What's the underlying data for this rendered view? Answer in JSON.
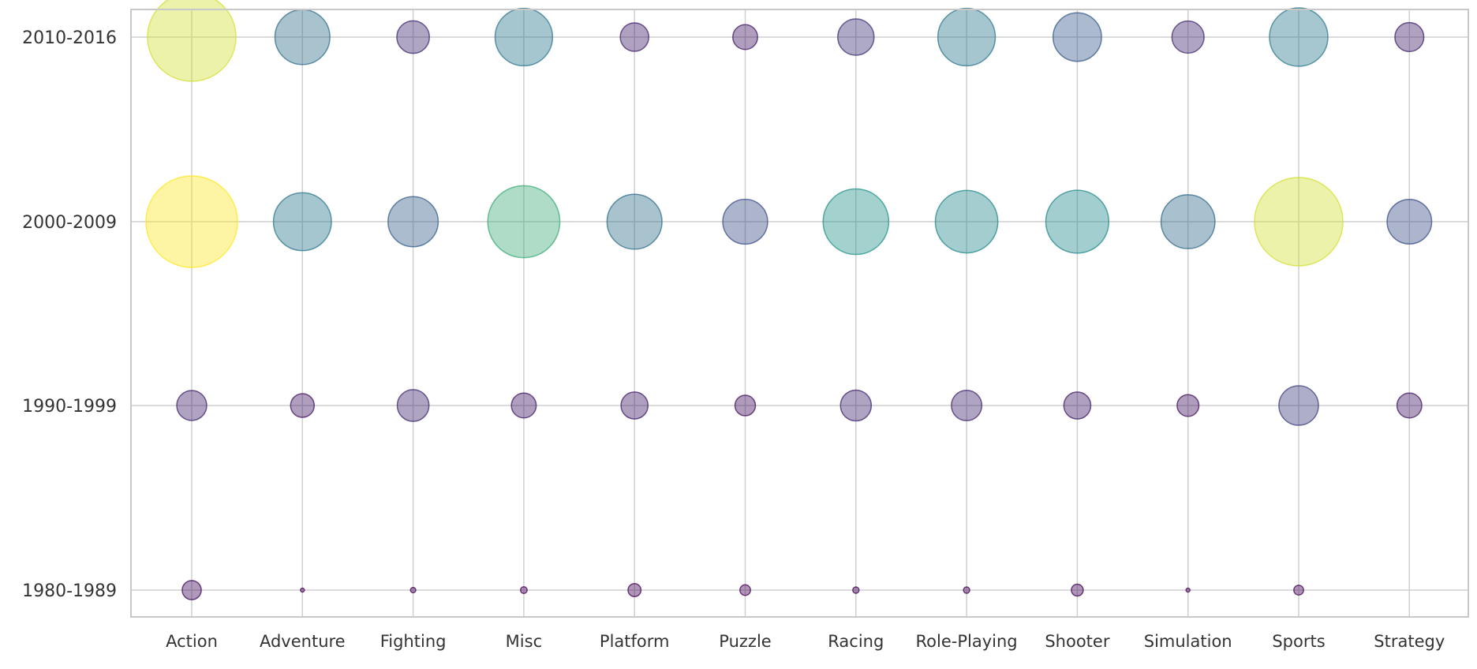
{
  "chart_data": {
    "type": "scatter",
    "title": "",
    "xlabel": "",
    "ylabel": "",
    "categories": [
      "Action",
      "Adventure",
      "Fighting",
      "Misc",
      "Platform",
      "Puzzle",
      "Racing",
      "Role-Playing",
      "Shooter",
      "Simulation",
      "Sports",
      "Strategy"
    ],
    "y_categories": [
      "1980-1989",
      "1990-1999",
      "2000-2009",
      "2010-2016"
    ],
    "grid": true,
    "colormap": "viridis",
    "color_min": 0,
    "color_max": 1500,
    "points": [
      {
        "x": "Action",
        "y": "2010-2016",
        "value": 1400
      },
      {
        "x": "Adventure",
        "y": "2010-2016",
        "value": 540
      },
      {
        "x": "Fighting",
        "y": "2010-2016",
        "value": 190
      },
      {
        "x": "Misc",
        "y": "2010-2016",
        "value": 590
      },
      {
        "x": "Platform",
        "y": "2010-2016",
        "value": 145
      },
      {
        "x": "Puzzle",
        "y": "2010-2016",
        "value": 110
      },
      {
        "x": "Racing",
        "y": "2010-2016",
        "value": 235
      },
      {
        "x": "Role-Playing",
        "y": "2010-2016",
        "value": 590
      },
      {
        "x": "Shooter",
        "y": "2010-2016",
        "value": 420
      },
      {
        "x": "Simulation",
        "y": "2010-2016",
        "value": 185
      },
      {
        "x": "Sports",
        "y": "2010-2016",
        "value": 610
      },
      {
        "x": "Strategy",
        "y": "2010-2016",
        "value": 150
      },
      {
        "x": "Action",
        "y": "2000-2009",
        "value": 1500
      },
      {
        "x": "Adventure",
        "y": "2000-2009",
        "value": 600
      },
      {
        "x": "Fighting",
        "y": "2000-2009",
        "value": 450
      },
      {
        "x": "Misc",
        "y": "2000-2009",
        "value": 930
      },
      {
        "x": "Platform",
        "y": "2000-2009",
        "value": 540
      },
      {
        "x": "Puzzle",
        "y": "2000-2009",
        "value": 360
      },
      {
        "x": "Racing",
        "y": "2000-2009",
        "value": 770
      },
      {
        "x": "Role-Playing",
        "y": "2000-2009",
        "value": 700
      },
      {
        "x": "Shooter",
        "y": "2000-2009",
        "value": 710
      },
      {
        "x": "Simulation",
        "y": "2000-2009",
        "value": 520
      },
      {
        "x": "Sports",
        "y": "2000-2009",
        "value": 1400
      },
      {
        "x": "Strategy",
        "y": "2000-2009",
        "value": 355
      },
      {
        "x": "Action",
        "y": "1990-1999",
        "value": 160
      },
      {
        "x": "Adventure",
        "y": "1990-1999",
        "value": 100
      },
      {
        "x": "Fighting",
        "y": "1990-1999",
        "value": 180
      },
      {
        "x": "Misc",
        "y": "1990-1999",
        "value": 110
      },
      {
        "x": "Platform",
        "y": "1990-1999",
        "value": 130
      },
      {
        "x": "Puzzle",
        "y": "1990-1999",
        "value": 75
      },
      {
        "x": "Racing",
        "y": "1990-1999",
        "value": 170
      },
      {
        "x": "Role-Playing",
        "y": "1990-1999",
        "value": 165
      },
      {
        "x": "Shooter",
        "y": "1990-1999",
        "value": 130
      },
      {
        "x": "Simulation",
        "y": "1990-1999",
        "value": 85
      },
      {
        "x": "Sports",
        "y": "1990-1999",
        "value": 280
      },
      {
        "x": "Strategy",
        "y": "1990-1999",
        "value": 110
      },
      {
        "x": "Action",
        "y": "1980-1989",
        "value": 65
      },
      {
        "x": "Adventure",
        "y": "1980-1989",
        "value": 2
      },
      {
        "x": "Fighting",
        "y": "1980-1989",
        "value": 5
      },
      {
        "x": "Misc",
        "y": "1980-1989",
        "value": 8
      },
      {
        "x": "Platform",
        "y": "1980-1989",
        "value": 30
      },
      {
        "x": "Puzzle",
        "y": "1980-1989",
        "value": 20
      },
      {
        "x": "Racing",
        "y": "1980-1989",
        "value": 7
      },
      {
        "x": "Role-Playing",
        "y": "1980-1989",
        "value": 7
      },
      {
        "x": "Shooter",
        "y": "1980-1989",
        "value": 25
      },
      {
        "x": "Simulation",
        "y": "1980-1989",
        "value": 2
      },
      {
        "x": "Sports",
        "y": "1980-1989",
        "value": 17
      },
      {
        "x": "Strategy",
        "y": "1980-1989",
        "value": 0
      }
    ]
  }
}
